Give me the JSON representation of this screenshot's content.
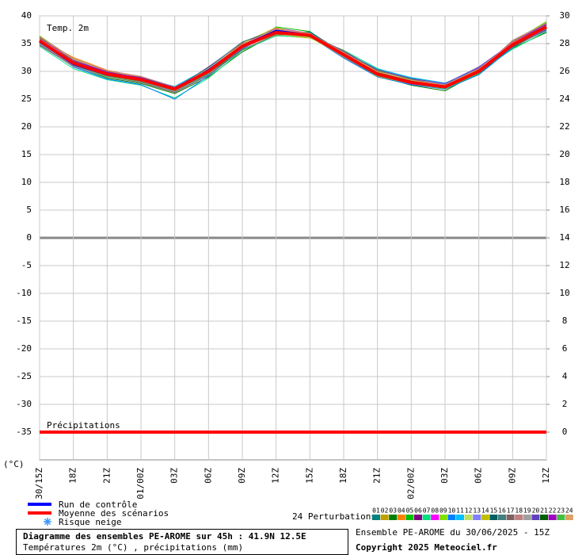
{
  "chart_data": {
    "type": "line",
    "annotations": [
      "Temp. 2m",
      "Précipitations"
    ],
    "y_unit": "(°C)",
    "categories": [
      "30/15Z",
      "18Z",
      "21Z",
      "01/00Z",
      "03Z",
      "06Z",
      "09Z",
      "12Z",
      "15Z",
      "18Z",
      "21Z",
      "02/00Z",
      "03Z",
      "06Z",
      "09Z",
      "12Z"
    ],
    "ylim": [
      -40,
      40
    ],
    "yticks": [
      -35,
      -30,
      -25,
      -20,
      -15,
      -10,
      -5,
      0,
      5,
      10,
      15,
      20,
      25,
      30,
      35,
      40
    ],
    "y2lim": [
      -2,
      30
    ],
    "y2ticks": [
      0,
      2,
      4,
      6,
      8,
      10,
      12,
      14,
      16,
      18,
      20,
      22,
      24,
      26,
      28,
      30
    ],
    "grid": true,
    "series": [
      {
        "name": "Run de contrôle",
        "color": "#0000ff",
        "values": [
          35.3,
          31.2,
          29.3,
          28.4,
          26.7,
          30.3,
          34.6,
          37.4,
          36.6,
          32.8,
          29.4,
          28,
          27.1,
          30.2,
          35,
          37.9
        ]
      },
      {
        "name": "Moyenne des scénarios",
        "color": "#ff0000",
        "values": [
          35.5,
          31.5,
          29.5,
          28.5,
          26.8,
          30,
          34.5,
          37,
          36.5,
          33,
          29.5,
          28,
          27.2,
          30,
          34.8,
          38
        ]
      },
      {
        "color": "#ff0000",
        "axis": "y2",
        "values": [
          0,
          0,
          0,
          0,
          0,
          0,
          0,
          0,
          0,
          0,
          0,
          0,
          0,
          0,
          0,
          0
        ]
      }
    ],
    "snow_legend": "Risque neige",
    "perturbations": {
      "label": "24 Perturbations",
      "series": [
        {
          "name": "01",
          "color": "#008080",
          "values": [
            35,
            31,
            29,
            28.2,
            26.5,
            29.5,
            34,
            37.5,
            36.8,
            32.5,
            29,
            27.8,
            27,
            29.5,
            34.5,
            37.5
          ]
        },
        {
          "name": "02",
          "color": "#c0a000",
          "values": [
            36,
            32,
            30,
            28.8,
            27,
            30.5,
            35,
            36.5,
            36,
            33.5,
            30,
            28.2,
            27.5,
            30.5,
            35,
            38.5
          ]
        },
        {
          "name": "03",
          "color": "#008000",
          "values": [
            34.8,
            31,
            28.8,
            27.8,
            26,
            29,
            33.5,
            36.8,
            36.2,
            32.8,
            29.2,
            27.5,
            26.5,
            29.8,
            34.2,
            37
          ]
        },
        {
          "name": "04",
          "color": "#ff8000",
          "values": [
            35.8,
            32.5,
            30.2,
            29,
            27.2,
            30.2,
            34.8,
            37.2,
            36.8,
            33.2,
            29.8,
            28.3,
            27.6,
            30.2,
            35.2,
            38.2
          ]
        },
        {
          "name": "05",
          "color": "#00c000",
          "values": [
            36.2,
            31.8,
            29.6,
            28.6,
            26.6,
            29.6,
            34.2,
            38,
            37.2,
            33,
            29.4,
            28,
            27,
            29.6,
            35.5,
            38.8
          ]
        },
        {
          "name": "06",
          "color": "#800080",
          "values": [
            35.2,
            31.2,
            29.2,
            28.4,
            26.9,
            30.8,
            35.2,
            37.4,
            36.4,
            32.6,
            29.6,
            27.9,
            27.3,
            30.6,
            34.6,
            37.8
          ]
        },
        {
          "name": "07",
          "color": "#00e080",
          "values": [
            34.5,
            30.5,
            28.5,
            27.5,
            25.2,
            28.8,
            33.8,
            36.4,
            36.2,
            33.8,
            30.5,
            28.8,
            27.8,
            30,
            34,
            37.2
          ]
        },
        {
          "name": "08",
          "color": "#ff00ff",
          "values": [
            35.6,
            31.6,
            29.4,
            28.3,
            26.4,
            30.4,
            34.6,
            37.8,
            36.9,
            32.9,
            29.3,
            27.7,
            27.1,
            29.9,
            35.1,
            38.3
          ]
        },
        {
          "name": "09",
          "color": "#80e000",
          "values": [
            36.4,
            32.2,
            29.8,
            28.9,
            27.1,
            29.9,
            34.4,
            36.9,
            36.6,
            33.6,
            30.2,
            28.5,
            27.4,
            30.3,
            35.3,
            39
          ]
        },
        {
          "name": "10",
          "color": "#0080ff",
          "values": [
            35.1,
            30.8,
            28.6,
            27.6,
            25,
            29.2,
            34.1,
            37.1,
            36.3,
            32.4,
            29,
            27.6,
            26.8,
            29.4,
            34.3,
            37.6
          ]
        },
        {
          "name": "11",
          "color": "#00c0ff",
          "values": [
            35.3,
            31.4,
            29.6,
            28.7,
            27.3,
            30.6,
            34.9,
            37.3,
            37,
            33.4,
            30.4,
            28.9,
            27.9,
            30.4,
            34.9,
            38.1
          ]
        },
        {
          "name": "12",
          "color": "#c0e060",
          "values": [
            35.9,
            32.1,
            29.9,
            28.5,
            26.7,
            30.1,
            34.3,
            36.7,
            36.1,
            32.7,
            29.5,
            28.1,
            27.2,
            30.1,
            35.4,
            38.6
          ]
        },
        {
          "name": "13",
          "color": "#8080ff",
          "values": [
            34.9,
            31.1,
            29.1,
            28.1,
            26.3,
            29.4,
            34.7,
            37.6,
            36.7,
            33.1,
            29.7,
            28.4,
            27.7,
            30.7,
            34.7,
            37.3
          ]
        },
        {
          "name": "14",
          "color": "#c0c000",
          "values": [
            36.1,
            31.9,
            29.7,
            28.6,
            26.9,
            30.3,
            35.1,
            37.9,
            36.5,
            32.8,
            29.1,
            27.8,
            26.9,
            29.7,
            35,
            38.4
          ]
        },
        {
          "name": "15",
          "color": "#006060",
          "values": [
            35.4,
            31.3,
            29.3,
            28.4,
            26.8,
            29.8,
            34.5,
            37,
            37.1,
            33.3,
            29.9,
            28.1,
            27.3,
            30.2,
            34.6,
            37.9
          ]
        },
        {
          "name": "16",
          "color": "#408080",
          "values": [
            35.7,
            31.7,
            29.5,
            28.5,
            27,
            30.7,
            35.3,
            37.5,
            36.4,
            32.5,
            29.2,
            27.9,
            27,
            30.1,
            35.2,
            38.2
          ]
        },
        {
          "name": "17",
          "color": "#806060",
          "values": [
            34.7,
            30.9,
            29,
            28,
            26.2,
            29.3,
            33.9,
            36.6,
            36.6,
            33.7,
            30.1,
            28.6,
            27.5,
            30.5,
            34.4,
            37.4
          ]
        },
        {
          "name": "18",
          "color": "#c08080",
          "values": [
            36.3,
            32.3,
            30.1,
            29.1,
            27.2,
            30.2,
            34.6,
            37.7,
            36.9,
            33,
            29.6,
            28.2,
            27.4,
            30,
            35.6,
            38.7
          ]
        },
        {
          "name": "19",
          "color": "#a0a0a0",
          "values": [
            35,
            31,
            29,
            28.2,
            26.4,
            29.7,
            34.2,
            37.2,
            36.3,
            32.6,
            29.3,
            27.8,
            27.1,
            29.8,
            34.8,
            37.7
          ]
        },
        {
          "name": "20",
          "color": "#6040c0",
          "values": [
            35.6,
            31.8,
            29.8,
            28.9,
            27.1,
            30.4,
            35,
            36.8,
            36.8,
            33.5,
            30.3,
            28.7,
            27.8,
            30.8,
            35.1,
            38.3
          ]
        },
        {
          "name": "21",
          "color": "#006000",
          "values": [
            35.2,
            31.5,
            29.4,
            28.3,
            26.6,
            29.9,
            34.4,
            37.3,
            36.5,
            33.2,
            29.8,
            28.3,
            27.2,
            29.9,
            34.5,
            37.8
          ]
        },
        {
          "name": "22",
          "color": "#a000c0",
          "values": [
            36,
            32,
            29.9,
            28.8,
            26.9,
            30.1,
            34.8,
            37.4,
            36.7,
            32.9,
            29.4,
            28,
            27.3,
            30.3,
            35.3,
            38.5
          ]
        },
        {
          "name": "23",
          "color": "#40c040",
          "values": [
            35.3,
            31.2,
            29.1,
            28.2,
            26.5,
            29.6,
            34.3,
            36.9,
            36.2,
            32.8,
            29.5,
            27.9,
            26.9,
            29.6,
            34.9,
            38
          ]
        },
        {
          "name": "24",
          "color": "#e0a060",
          "values": [
            35.8,
            31.6,
            29.5,
            28.6,
            26.8,
            30.5,
            34.9,
            37.6,
            36.8,
            33.4,
            29.9,
            28.4,
            27.5,
            30.4,
            35.2,
            38.1
          ]
        }
      ]
    },
    "footer": {
      "title": "Diagramme des ensembles PE-AROME sur 45h : 41.9N 12.5E",
      "subtitle": "Températures 2m (°C) , précipitations (mm)",
      "run": "Ensemble PE-AROME du 30/06/2025 - 15Z",
      "copyright": "Copyright 2025 Meteociel.fr"
    }
  }
}
